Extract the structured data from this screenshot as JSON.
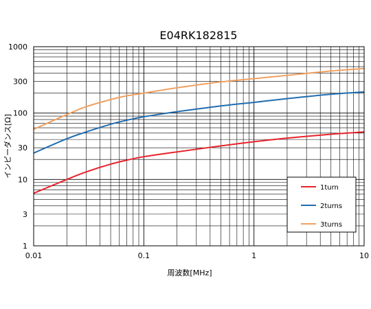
{
  "chart_data": {
    "type": "line",
    "title": "E04RK182815",
    "xlabel": "周波数[MHz]",
    "ylabel": "インピーダンス[Ω]",
    "x_scale": "log",
    "y_scale": "log",
    "xlim": [
      0.01,
      10
    ],
    "ylim": [
      1,
      1000
    ],
    "x_tick_labels": [
      "0.01",
      "0.1",
      "1",
      "10"
    ],
    "y_tick_labels": [
      "1",
      "3",
      "10",
      "30",
      "100",
      "300",
      "1000"
    ],
    "y_ticks": [
      1,
      3,
      10,
      30,
      100,
      300,
      1000
    ],
    "grid": true,
    "legend_position": "bottom-right",
    "series": [
      {
        "name": "1turn",
        "color": "#e8222a",
        "x": [
          0.01,
          0.02,
          0.03,
          0.05,
          0.07,
          0.1,
          0.2,
          0.5,
          1,
          2,
          5,
          10
        ],
        "y": [
          6.2,
          10,
          13,
          17,
          19.5,
          22,
          26,
          32,
          37,
          42,
          48,
          52
        ]
      },
      {
        "name": "2turns",
        "color": "#1f6cb0",
        "x": [
          0.01,
          0.02,
          0.03,
          0.05,
          0.07,
          0.1,
          0.2,
          0.5,
          1,
          2,
          5,
          10
        ],
        "y": [
          25,
          41,
          52,
          68,
          78,
          88,
          105,
          128,
          145,
          165,
          192,
          208
        ]
      },
      {
        "name": "3turns",
        "color": "#f0a060",
        "x": [
          0.01,
          0.02,
          0.03,
          0.05,
          0.07,
          0.1,
          0.2,
          0.5,
          1,
          2,
          5,
          10
        ],
        "y": [
          57,
          95,
          125,
          160,
          182,
          200,
          240,
          295,
          330,
          370,
          430,
          470
        ]
      }
    ]
  }
}
